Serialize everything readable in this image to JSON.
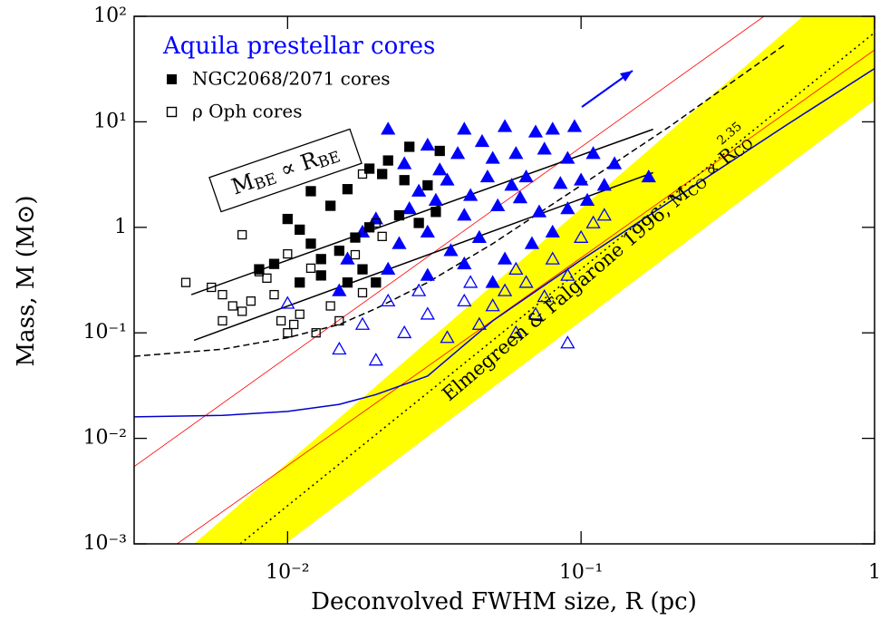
{
  "chart_data": {
    "type": "scatter",
    "xlabel": "Deconvolved FWHM size, R (pc)",
    "ylabel": "Mass, M (M⊙)",
    "xscale": "log",
    "yscale": "log",
    "xlim": [
      0.003,
      1
    ],
    "ylim": [
      0.001,
      100
    ],
    "xticks": [
      {
        "value": 0.01,
        "label": "10⁻²"
      },
      {
        "value": 0.1,
        "label": "10⁻¹"
      },
      1
    ],
    "yticks": [
      {
        "value": 0.001,
        "label": "10⁻³"
      },
      {
        "value": 0.01,
        "label": "10⁻²"
      },
      {
        "value": 0.1,
        "label": "10⁻¹"
      },
      1,
      {
        "value": 10,
        "label": "10¹"
      },
      {
        "value": 100,
        "label": "10²"
      }
    ],
    "legend_title": "Aquila prestellar cores",
    "legend_title_color": "#0000ff",
    "band": {
      "color": "#ffff00",
      "x": [
        0.0048,
        0.57,
        1,
        1,
        0.0098
      ],
      "y": [
        0.001,
        100,
        100,
        16,
        0.001
      ]
    },
    "lines": [
      {
        "color": "#ff0000",
        "dash": "solid",
        "x": [
          0.003,
          0.42
        ],
        "y": [
          0.0054,
          100
        ]
      },
      {
        "color": "#ff0000",
        "dash": "solid",
        "x": [
          0.0042,
          1
        ],
        "y": [
          0.001,
          48
        ]
      },
      {
        "color": "#000000",
        "dash": "dotted",
        "x": [
          0.0069,
          1
        ],
        "y": [
          0.001,
          70
        ]
      },
      {
        "color": "#0000cc",
        "dash": "solid",
        "x": [
          0.003,
          0.006,
          0.01,
          0.015,
          0.02,
          0.03,
          0.05,
          0.1,
          0.2,
          0.5,
          1
        ],
        "y": [
          0.016,
          0.0165,
          0.018,
          0.021,
          0.026,
          0.039,
          0.13,
          0.49,
          1.74,
          9.3,
          32
        ]
      },
      {
        "color": "#000000",
        "dash": "dashed",
        "x": [
          0.003,
          0.006,
          0.01,
          0.015,
          0.02,
          0.03,
          0.05,
          0.1,
          0.2,
          0.5
        ],
        "y": [
          0.06,
          0.07,
          0.09,
          0.12,
          0.17,
          0.3,
          0.7,
          2.5,
          9,
          55
        ]
      },
      {
        "color": "#000000",
        "dash": "solid",
        "x": [
          0.0047,
          0.176
        ],
        "y": [
          0.23,
          8.5
        ]
      },
      {
        "color": "#000000",
        "dash": "solid",
        "x": [
          0.0048,
          0.176
        ],
        "y": [
          0.085,
          3.3
        ]
      }
    ],
    "series": [
      {
        "marker": "triangle",
        "filled": true,
        "color": "#0000ff",
        "x": [
          0.022,
          0.03,
          0.04,
          0.046,
          0.055,
          0.07,
          0.08,
          0.095,
          0.025,
          0.033,
          0.038,
          0.05,
          0.06,
          0.075,
          0.09,
          0.11,
          0.13,
          0.17,
          0.028,
          0.035,
          0.042,
          0.048,
          0.058,
          0.065,
          0.085,
          0.1,
          0.12,
          0.02,
          0.026,
          0.032,
          0.04,
          0.052,
          0.062,
          0.072,
          0.09,
          0.105,
          0.018,
          0.024,
          0.03,
          0.036,
          0.045,
          0.055,
          0.068,
          0.08,
          0.022,
          0.03,
          0.04,
          0.05,
          0.016,
          0.015
        ],
        "y": [
          8.5,
          6,
          8.5,
          6.5,
          9,
          8,
          8.5,
          9,
          4,
          3.5,
          5,
          4.5,
          5,
          5.5,
          4.5,
          5,
          4,
          3,
          2.2,
          2.8,
          2,
          3,
          2.5,
          3,
          2.6,
          2.8,
          2.5,
          1.2,
          1.5,
          1.8,
          1.3,
          1.6,
          1.9,
          1.4,
          1.5,
          1.8,
          0.9,
          0.7,
          0.9,
          0.6,
          0.8,
          0.5,
          0.7,
          0.9,
          0.4,
          0.35,
          0.45,
          0.3,
          0.5,
          0.25
        ]
      },
      {
        "marker": "triangle",
        "filled": false,
        "color": "#0000ff",
        "x": [
          0.01,
          0.015,
          0.02,
          0.018,
          0.025,
          0.03,
          0.035,
          0.04,
          0.045,
          0.05,
          0.055,
          0.06,
          0.065,
          0.07,
          0.08,
          0.09,
          0.1,
          0.11,
          0.12,
          0.09,
          0.06,
          0.075,
          0.028,
          0.022,
          0.042
        ],
        "y": [
          0.19,
          0.07,
          0.055,
          0.12,
          0.1,
          0.15,
          0.09,
          0.2,
          0.12,
          0.18,
          0.25,
          0.1,
          0.3,
          0.15,
          0.5,
          0.35,
          0.8,
          1.1,
          1.3,
          0.08,
          0.4,
          0.22,
          0.25,
          0.2,
          0.3
        ]
      },
      {
        "name": "NGC2068/2071 cores",
        "marker": "square",
        "filled": true,
        "color": "#000000",
        "x": [
          0.026,
          0.033,
          0.022,
          0.019,
          0.021,
          0.016,
          0.012,
          0.03,
          0.025,
          0.014,
          0.01,
          0.011,
          0.012,
          0.013,
          0.015,
          0.017,
          0.018,
          0.02,
          0.009,
          0.008,
          0.011,
          0.013,
          0.016,
          0.019,
          0.024,
          0.028,
          0.032
        ],
        "y": [
          5.8,
          5.3,
          4.3,
          3.6,
          3.2,
          2.3,
          2.2,
          2.5,
          2.8,
          1.6,
          1.2,
          0.95,
          0.7,
          0.5,
          0.6,
          0.8,
          0.4,
          0.3,
          0.45,
          0.4,
          0.3,
          0.35,
          0.3,
          1,
          1.3,
          1.1,
          1.4
        ]
      },
      {
        "name": "ρ Oph cores",
        "marker": "square",
        "filled": false,
        "color": "#000000",
        "x": [
          0.0045,
          0.0055,
          0.006,
          0.0065,
          0.006,
          0.007,
          0.0075,
          0.008,
          0.0085,
          0.009,
          0.0095,
          0.01,
          0.0105,
          0.011,
          0.007,
          0.01,
          0.012,
          0.014,
          0.018,
          0.017,
          0.015,
          0.018,
          0.02,
          0.0125,
          0.021
        ],
        "y": [
          0.3,
          0.27,
          0.23,
          0.18,
          0.13,
          0.16,
          0.2,
          0.38,
          0.33,
          0.23,
          0.13,
          0.1,
          0.12,
          0.15,
          0.85,
          0.56,
          0.41,
          0.18,
          0.24,
          0.55,
          0.13,
          3.2,
          1.1,
          0.1,
          0.82
        ]
      }
    ],
    "annotations": [
      {
        "parts": [
          "M",
          "BE",
          " ∝ R",
          "BE"
        ]
      },
      {
        "parts": [
          "Elmegreen & Falgarone 1996, M",
          "CO",
          " ∝ R",
          "CO",
          "2.35"
        ]
      }
    ]
  }
}
